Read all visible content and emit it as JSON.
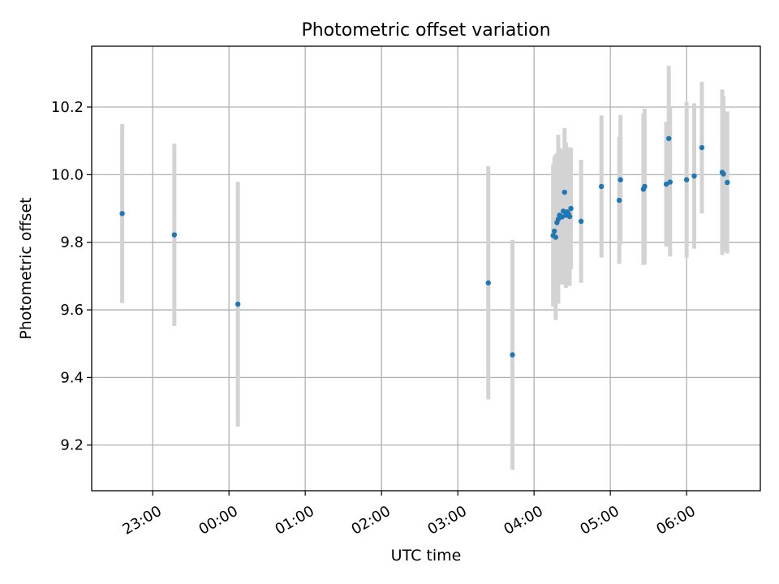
{
  "chart_data": {
    "type": "scatter",
    "title": "Photometric offset variation",
    "xlabel": "UTC time",
    "ylabel": "Photometric offset",
    "x_tick_labels": [
      "23:00",
      "00:00",
      "01:00",
      "02:00",
      "03:00",
      "04:00",
      "05:00",
      "06:00"
    ],
    "y_tick_labels": [
      "9.2",
      "9.4",
      "9.6",
      "9.8",
      "10.0",
      "10.2"
    ],
    "y_ticks": [
      9.2,
      9.4,
      9.6,
      9.8,
      10.0,
      10.2
    ],
    "xlim": [
      "22:12",
      "06:58"
    ],
    "ylim": [
      9.065,
      10.38
    ],
    "grid": true,
    "point_color": "#1f77b4",
    "errorbar_color": "#d3d3d3",
    "points": [
      {
        "x": "22:36",
        "y": 9.885,
        "err": 0.265
      },
      {
        "x": "23:17",
        "y": 9.822,
        "err": 0.27
      },
      {
        "x": "00:07",
        "y": 9.617,
        "err": 0.362
      },
      {
        "x": "03:24",
        "y": 9.68,
        "err": 0.345
      },
      {
        "x": "03:43",
        "y": 9.467,
        "err": 0.34
      },
      {
        "x": "04:15",
        "y": 9.82,
        "err": 0.21
      },
      {
        "x": "04:16",
        "y": 9.833,
        "err": 0.22
      },
      {
        "x": "04:17",
        "y": 9.815,
        "err": 0.245
      },
      {
        "x": "04:18",
        "y": 9.858,
        "err": 0.205
      },
      {
        "x": "04:19",
        "y": 9.868,
        "err": 0.25
      },
      {
        "x": "04:20",
        "y": 9.88,
        "err": 0.2
      },
      {
        "x": "04:22",
        "y": 9.875,
        "err": 0.2
      },
      {
        "x": "04:23",
        "y": 9.892,
        "err": 0.18
      },
      {
        "x": "04:24",
        "y": 9.948,
        "err": 0.19
      },
      {
        "x": "04:25",
        "y": 9.88,
        "err": 0.215
      },
      {
        "x": "04:26",
        "y": 9.89,
        "err": 0.185
      },
      {
        "x": "04:27",
        "y": 9.885,
        "err": 0.195
      },
      {
        "x": "04:28",
        "y": 9.876,
        "err": 0.205
      },
      {
        "x": "04:29",
        "y": 9.9,
        "err": 0.18
      },
      {
        "x": "04:37",
        "y": 9.862,
        "err": 0.182
      },
      {
        "x": "04:53",
        "y": 9.965,
        "err": 0.21
      },
      {
        "x": "05:07",
        "y": 9.924,
        "err": 0.188
      },
      {
        "x": "05:08",
        "y": 9.985,
        "err": 0.192
      },
      {
        "x": "05:26",
        "y": 9.957,
        "err": 0.224
      },
      {
        "x": "05:27",
        "y": 9.965,
        "err": 0.23
      },
      {
        "x": "05:44",
        "y": 9.972,
        "err": 0.185
      },
      {
        "x": "05:46",
        "y": 10.107,
        "err": 0.215
      },
      {
        "x": "05:47",
        "y": 9.978,
        "err": 0.22
      },
      {
        "x": "06:00",
        "y": 9.985,
        "err": 0.23
      },
      {
        "x": "06:06",
        "y": 9.996,
        "err": 0.215
      },
      {
        "x": "06:12",
        "y": 10.08,
        "err": 0.195
      },
      {
        "x": "06:28",
        "y": 10.007,
        "err": 0.245
      },
      {
        "x": "06:29",
        "y": 10.002,
        "err": 0.23
      },
      {
        "x": "06:32",
        "y": 9.977,
        "err": 0.21
      }
    ]
  }
}
